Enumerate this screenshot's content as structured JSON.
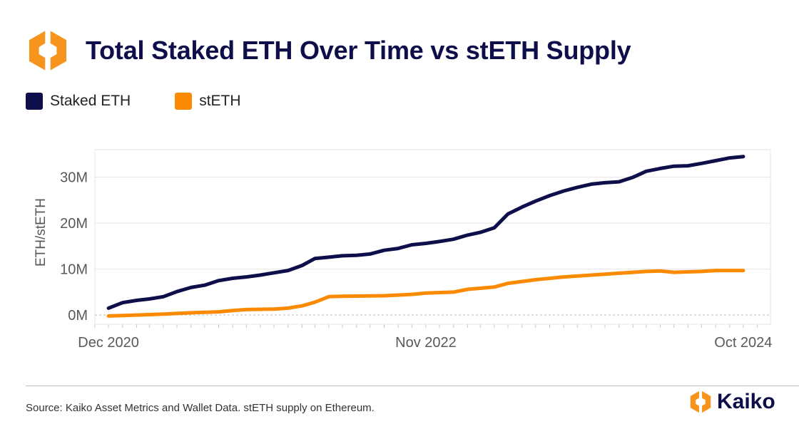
{
  "header": {
    "title": "Total Staked ETH Over Time vs stETH Supply"
  },
  "footer": {
    "source": "Source: Kaiko Asset Metrics and Wallet Data. stETH supply on Ethereum.",
    "brand": "Kaiko"
  },
  "colors": {
    "logo_orange": "#f7941d",
    "navy": "#0e0f4a",
    "grid": "#e6e6e6"
  },
  "chart_data": {
    "type": "line",
    "title": "Total Staked ETH Over Time vs stETH Supply",
    "xlabel": "",
    "ylabel": "ETH/stETH",
    "xlim": [
      "2020-11-01",
      "2024-11-30"
    ],
    "ylim": [
      -2000000,
      36000000
    ],
    "y_ticks": [
      0,
      10000000,
      20000000,
      30000000
    ],
    "y_tick_labels": [
      "0M",
      "10M",
      "20M",
      "30M"
    ],
    "x_ticks": [
      "2020-12-01",
      "2022-11-01",
      "2024-10-01"
    ],
    "x_tick_labels": [
      "Dec 2020",
      "Nov 2022",
      "Oct 2024"
    ],
    "legend_position": "top-left",
    "grid": true,
    "series": [
      {
        "name": "Staked ETH",
        "color": "#0e0f4a",
        "points": [
          [
            "2020-12-01",
            1500000
          ],
          [
            "2021-01-01",
            2700000
          ],
          [
            "2021-02-01",
            3200000
          ],
          [
            "2021-03-01",
            3500000
          ],
          [
            "2021-04-01",
            4000000
          ],
          [
            "2021-05-01",
            5100000
          ],
          [
            "2021-06-01",
            6000000
          ],
          [
            "2021-07-01",
            6500000
          ],
          [
            "2021-08-01",
            7500000
          ],
          [
            "2021-09-01",
            8000000
          ],
          [
            "2021-10-01",
            8300000
          ],
          [
            "2021-11-01",
            8700000
          ],
          [
            "2021-12-01",
            9200000
          ],
          [
            "2022-01-01",
            9700000
          ],
          [
            "2022-02-01",
            10800000
          ],
          [
            "2022-03-01",
            12300000
          ],
          [
            "2022-04-01",
            12600000
          ],
          [
            "2022-05-01",
            12900000
          ],
          [
            "2022-06-01",
            13000000
          ],
          [
            "2022-07-01",
            13300000
          ],
          [
            "2022-08-01",
            14100000
          ],
          [
            "2022-09-01",
            14500000
          ],
          [
            "2022-10-01",
            15300000
          ],
          [
            "2022-11-01",
            15600000
          ],
          [
            "2022-12-01",
            16000000
          ],
          [
            "2023-01-01",
            16500000
          ],
          [
            "2023-02-01",
            17400000
          ],
          [
            "2023-03-01",
            18000000
          ],
          [
            "2023-04-01",
            19000000
          ],
          [
            "2023-05-01",
            22000000
          ],
          [
            "2023-06-01",
            23500000
          ],
          [
            "2023-07-01",
            24800000
          ],
          [
            "2023-08-01",
            26000000
          ],
          [
            "2023-09-01",
            27000000
          ],
          [
            "2023-10-01",
            27800000
          ],
          [
            "2023-11-01",
            28500000
          ],
          [
            "2023-12-01",
            28800000
          ],
          [
            "2024-01-01",
            29000000
          ],
          [
            "2024-02-01",
            30000000
          ],
          [
            "2024-03-01",
            31300000
          ],
          [
            "2024-04-01",
            31900000
          ],
          [
            "2024-05-01",
            32400000
          ],
          [
            "2024-06-01",
            32500000
          ],
          [
            "2024-07-01",
            33000000
          ],
          [
            "2024-08-01",
            33600000
          ],
          [
            "2024-09-01",
            34200000
          ],
          [
            "2024-10-01",
            34500000
          ]
        ]
      },
      {
        "name": "stETH",
        "color": "#fb8a00",
        "points": [
          [
            "2020-12-01",
            -200000
          ],
          [
            "2021-02-01",
            0
          ],
          [
            "2021-04-01",
            200000
          ],
          [
            "2021-06-01",
            500000
          ],
          [
            "2021-08-01",
            700000
          ],
          [
            "2021-09-01",
            1000000
          ],
          [
            "2021-10-01",
            1200000
          ],
          [
            "2021-12-01",
            1300000
          ],
          [
            "2022-01-01",
            1500000
          ],
          [
            "2022-02-01",
            2000000
          ],
          [
            "2022-03-01",
            2800000
          ],
          [
            "2022-04-01",
            4000000
          ],
          [
            "2022-05-01",
            4100000
          ],
          [
            "2022-08-01",
            4200000
          ],
          [
            "2022-10-01",
            4500000
          ],
          [
            "2022-11-01",
            4800000
          ],
          [
            "2023-01-01",
            5000000
          ],
          [
            "2023-02-01",
            5600000
          ],
          [
            "2023-04-01",
            6100000
          ],
          [
            "2023-05-01",
            6900000
          ],
          [
            "2023-07-01",
            7700000
          ],
          [
            "2023-09-01",
            8300000
          ],
          [
            "2023-11-01",
            8700000
          ],
          [
            "2024-01-01",
            9100000
          ],
          [
            "2024-03-01",
            9500000
          ],
          [
            "2024-04-01",
            9600000
          ],
          [
            "2024-05-01",
            9300000
          ],
          [
            "2024-07-01",
            9500000
          ],
          [
            "2024-08-01",
            9700000
          ],
          [
            "2024-10-01",
            9700000
          ]
        ]
      }
    ]
  }
}
